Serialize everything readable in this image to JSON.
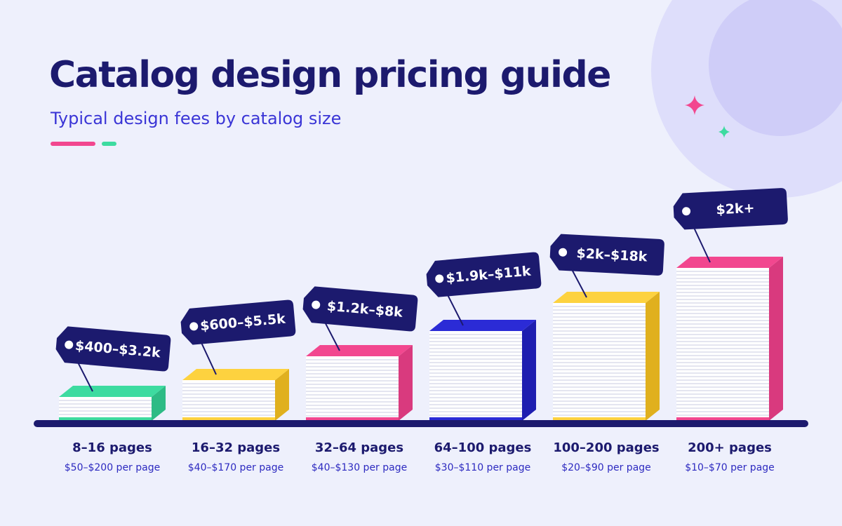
{
  "header": {
    "title": "Catalog design pricing guide",
    "subtitle": "Typical design fees by catalog size"
  },
  "items": [
    {
      "label": "8–16 pages",
      "per_page": "$50–$200 per page",
      "price": "$400–$3.2k"
    },
    {
      "label": "16–32 pages",
      "per_page": "$40–$170 per page",
      "price": "$600–$5.5k"
    },
    {
      "label": "32–64 pages",
      "per_page": "$40–$130 per page",
      "price": "$1.2k–$8k"
    },
    {
      "label": "64–100 pages",
      "per_page": "$30–$110 per page",
      "price": "$1.9k–$11k"
    },
    {
      "label": "100–200 pages",
      "per_page": "$20–$90 per page",
      "price": "$2k–$18k"
    },
    {
      "label": "200+ pages",
      "per_page": "$10–$70 per page",
      "price": "$2k+"
    }
  ]
}
